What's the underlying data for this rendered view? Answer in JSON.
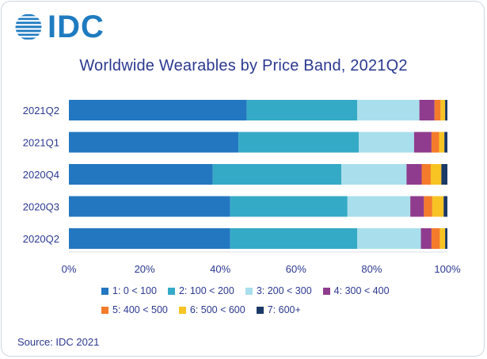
{
  "logo": {
    "text": "IDC"
  },
  "chart_data": {
    "type": "bar",
    "orientation": "horizontal",
    "stacked": true,
    "title": "Worldwide Wearables by Price Band, 2021Q2",
    "categories": [
      "2021Q2",
      "2021Q1",
      "2020Q4",
      "2020Q3",
      "2020Q2"
    ],
    "xlim": [
      0,
      100
    ],
    "xticks": [
      "0%",
      "20%",
      "40%",
      "60%",
      "80%",
      "100%"
    ],
    "xlabel": "",
    "ylabel": "",
    "grid": false,
    "legend_position": "bottom",
    "series": [
      {
        "name": "1: 0 < 100",
        "color": "#2377c0",
        "values": [
          47.0,
          44.8,
          38.0,
          42.6,
          42.6
        ]
      },
      {
        "name": "2: 100 < 200",
        "color": "#35aac7",
        "values": [
          29.2,
          31.8,
          34.0,
          31.0,
          33.6
        ]
      },
      {
        "name": "3: 200 < 300",
        "color": "#a9dfec",
        "values": [
          16.4,
          14.6,
          17.2,
          16.6,
          16.8
        ]
      },
      {
        "name": "4: 300 < 400",
        "color": "#8f3c8e",
        "values": [
          4.0,
          4.6,
          4.0,
          3.6,
          2.8
        ]
      },
      {
        "name": "5: 400 < 500",
        "color": "#f47b2c",
        "values": [
          1.6,
          2.0,
          2.4,
          2.2,
          2.2
        ]
      },
      {
        "name": "6: 500 < 600",
        "color": "#f7c424",
        "values": [
          1.2,
          1.4,
          2.8,
          3.0,
          1.4
        ]
      },
      {
        "name": "7: 600+",
        "color": "#1b3966",
        "values": [
          0.6,
          0.8,
          1.6,
          1.0,
          0.6
        ]
      }
    ]
  },
  "source": "Source: IDC 2021"
}
